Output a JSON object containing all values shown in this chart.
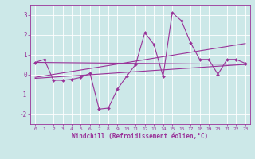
{
  "xlabel": "Windchill (Refroidissement éolien,°C)",
  "bg_color": "#cce8e8",
  "line_color": "#993399",
  "grid_color": "#ffffff",
  "xlim": [
    -0.5,
    23.5
  ],
  "ylim": [
    -2.5,
    3.5
  ],
  "yticks": [
    -2,
    -1,
    0,
    1,
    2,
    3
  ],
  "xticks": [
    0,
    1,
    2,
    3,
    4,
    5,
    6,
    7,
    8,
    9,
    10,
    11,
    12,
    13,
    14,
    15,
    16,
    17,
    18,
    19,
    20,
    21,
    22,
    23
  ],
  "series1_x": [
    0,
    1,
    2,
    3,
    4,
    5,
    6,
    7,
    8,
    9,
    10,
    11,
    12,
    13,
    14,
    15,
    16,
    17,
    18,
    19,
    20,
    21,
    22,
    23
  ],
  "series1_y": [
    0.6,
    0.75,
    -0.3,
    -0.3,
    -0.25,
    -0.15,
    0.05,
    -1.75,
    -1.7,
    -0.75,
    -0.1,
    0.5,
    2.1,
    1.5,
    -0.1,
    3.1,
    2.7,
    1.6,
    0.75,
    0.75,
    0.0,
    0.75,
    0.75,
    0.55
  ],
  "line2_x": [
    0,
    23
  ],
  "line2_y": [
    0.6,
    0.5
  ],
  "line3_x": [
    0,
    23
  ],
  "line3_y": [
    -0.2,
    0.5
  ],
  "line4_x": [
    0,
    23
  ],
  "line4_y": [
    -0.15,
    1.55
  ]
}
